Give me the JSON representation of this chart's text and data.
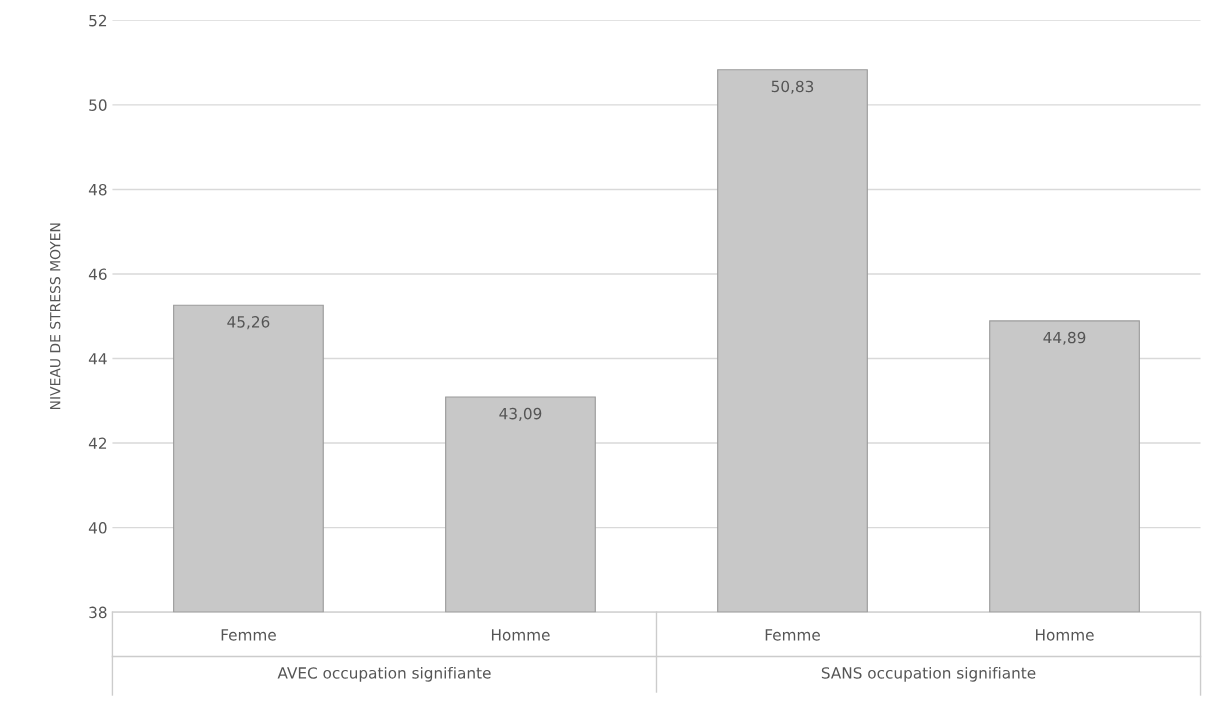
{
  "chart_data": {
    "type": "bar",
    "ylabel": "NIVEAU DE STRESS MOYEN",
    "categories": [
      "Femme",
      "Homme",
      "Femme",
      "Homme"
    ],
    "values": [
      45.26,
      43.09,
      50.83,
      44.89
    ],
    "value_labels": [
      "45,26",
      "43,09",
      "50,83",
      "44,89"
    ],
    "color": "#c8c8c8",
    "annotations": [
      "AVEC occupation signifiante",
      "SANS occupation signifiante"
    ],
    "ylim": [
      38,
      52
    ],
    "yticks": [
      38,
      40,
      42,
      44,
      46,
      48,
      50,
      52
    ],
    "grid": "y",
    "legend": false
  }
}
